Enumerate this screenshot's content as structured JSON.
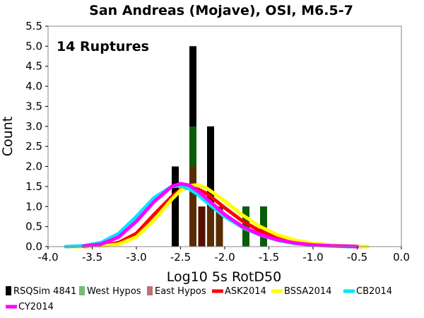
{
  "chart_data": {
    "type": "bar",
    "title": "San Andreas (Mojave), OSI, M6.5-7",
    "xlabel": "Log10 5s RotD50",
    "ylabel": "Count",
    "annotation": "14 Ruptures",
    "xlim": [
      -4.0,
      0.0
    ],
    "ylim": [
      0.0,
      5.5
    ],
    "x_ticks": [
      -4.0,
      -3.5,
      -3.0,
      -2.5,
      -2.0,
      -1.5,
      -1.0,
      -0.5,
      0.0
    ],
    "x_tick_labels": [
      "-4.0",
      "-3.5",
      "-3.0",
      "-2.5",
      "-2.0",
      "-1.5",
      "-1.0",
      "-0.5",
      "0.0"
    ],
    "y_ticks": [
      0.0,
      0.5,
      1.0,
      1.5,
      2.0,
      2.5,
      3.0,
      3.5,
      4.0,
      4.5,
      5.0,
      5.5
    ],
    "y_tick_labels": [
      "0.0",
      "0.5",
      "1.0",
      "1.5",
      "2.0",
      "2.5",
      "3.0",
      "3.5",
      "4.0",
      "4.5",
      "5.0",
      "5.5"
    ],
    "grid": false,
    "legend_position": "bottom",
    "legend": [
      {
        "name": "RSQSim 4841",
        "color": "#000000",
        "kind": "bar"
      },
      {
        "name": "West Hypos",
        "color": "#77bb77",
        "kind": "bar"
      },
      {
        "name": "East Hypos",
        "color": "#c07070",
        "kind": "bar"
      },
      {
        "name": "ASK2014",
        "color": "#ff0000",
        "kind": "line"
      },
      {
        "name": "BSSA2014",
        "color": "#ffff00",
        "kind": "line"
      },
      {
        "name": "CB2014",
        "color": "#00e5ff",
        "kind": "line"
      },
      {
        "name": "CY2014",
        "color": "#ff00ff",
        "kind": "line"
      }
    ],
    "bar_width": 0.08,
    "bars": [
      {
        "x": -2.56,
        "total": 2,
        "west": 0,
        "east": 0
      },
      {
        "x": -2.36,
        "total": 5,
        "west": 3,
        "east": 2
      },
      {
        "x": -2.26,
        "total": 1,
        "west": 0,
        "east": 1
      },
      {
        "x": -2.16,
        "total": 3,
        "west": 1,
        "east": 1
      },
      {
        "x": -2.06,
        "total": 1,
        "west": 1,
        "east": 1
      },
      {
        "x": -1.76,
        "total": 1,
        "west": 1,
        "east": 0
      },
      {
        "x": -1.56,
        "total": 1,
        "west": 1,
        "east": 0
      }
    ],
    "series": [
      {
        "name": "ASK2014",
        "color": "#ff0000",
        "x": [
          -3.8,
          -3.6,
          -3.4,
          -3.2,
          -3.0,
          -2.8,
          -2.6,
          -2.5,
          -2.4,
          -2.3,
          -2.2,
          -2.0,
          -1.8,
          -1.6,
          -1.4,
          -1.2,
          -1.0,
          -0.8,
          -0.6,
          -0.45
        ],
        "y": [
          0.0,
          0.0,
          0.02,
          0.1,
          0.33,
          0.8,
          1.25,
          1.42,
          1.48,
          1.43,
          1.32,
          0.97,
          0.64,
          0.39,
          0.22,
          0.12,
          0.06,
          0.03,
          0.01,
          0.0
        ]
      },
      {
        "name": "BSSA2014",
        "color": "#ffff00",
        "x": [
          -3.8,
          -3.6,
          -3.4,
          -3.2,
          -3.0,
          -2.8,
          -2.6,
          -2.5,
          -2.4,
          -2.3,
          -2.2,
          -2.0,
          -1.8,
          -1.6,
          -1.4,
          -1.2,
          -1.0,
          -0.8,
          -0.6,
          -0.38
        ],
        "y": [
          0.0,
          0.0,
          0.01,
          0.06,
          0.24,
          0.66,
          1.18,
          1.4,
          1.52,
          1.54,
          1.45,
          1.14,
          0.79,
          0.5,
          0.29,
          0.16,
          0.08,
          0.04,
          0.01,
          0.0
        ]
      },
      {
        "name": "CB2014",
        "color": "#00e5ff",
        "x": [
          -3.8,
          -3.6,
          -3.4,
          -3.2,
          -3.0,
          -2.8,
          -2.6,
          -2.5,
          -2.4,
          -2.3,
          -2.2,
          -2.0,
          -1.8,
          -1.6,
          -1.4,
          -1.2,
          -1.0,
          -0.8,
          -0.6,
          -0.5
        ],
        "y": [
          0.0,
          0.02,
          0.1,
          0.33,
          0.75,
          1.22,
          1.5,
          1.52,
          1.44,
          1.29,
          1.1,
          0.75,
          0.48,
          0.29,
          0.16,
          0.08,
          0.04,
          0.02,
          0.0,
          0.0
        ]
      },
      {
        "name": "CY2014",
        "color": "#ff00ff",
        "x": [
          -3.6,
          -3.4,
          -3.2,
          -3.0,
          -2.8,
          -2.6,
          -2.5,
          -2.4,
          -2.3,
          -2.2,
          -2.0,
          -1.8,
          -1.6,
          -1.4,
          -1.2,
          -1.0,
          -0.8,
          -0.6,
          -0.5
        ],
        "y": [
          0.01,
          0.06,
          0.24,
          0.63,
          1.12,
          1.5,
          1.57,
          1.53,
          1.38,
          1.19,
          0.8,
          0.5,
          0.3,
          0.17,
          0.09,
          0.04,
          0.02,
          0.01,
          0.0
        ]
      }
    ]
  }
}
